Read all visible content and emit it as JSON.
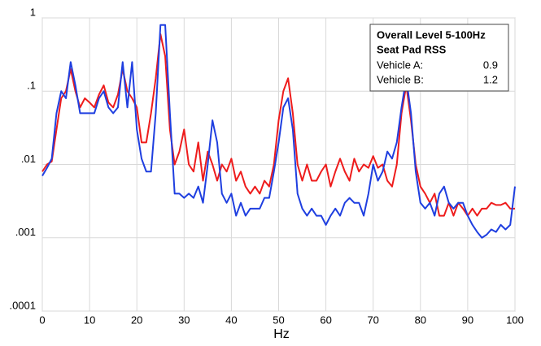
{
  "chart_data": {
    "type": "line",
    "legend_title": [
      "Overall Level 5-100Hz",
      "Seat Pad RSS"
    ],
    "x_label": "Hz",
    "log_y": true,
    "grid": true,
    "legend_position": "upper-right",
    "xlim": [
      0,
      100
    ],
    "xticks": [
      0,
      10,
      20,
      30,
      40,
      50,
      60,
      70,
      80,
      90,
      100
    ],
    "ylim": [
      0.0001,
      1
    ],
    "yticks": [
      {
        "value": 0.0001,
        "label": ".0001"
      },
      {
        "value": 0.001,
        "label": ".001"
      },
      {
        "value": 0.01,
        "label": ".01"
      },
      {
        "value": 0.1,
        "label": ".1"
      },
      1
    ],
    "x": [
      0,
      1,
      2,
      3,
      4,
      5,
      6,
      7,
      8,
      9,
      10,
      11,
      12,
      13,
      14,
      15,
      16,
      17,
      18,
      19,
      20,
      21,
      22,
      23,
      24,
      25,
      26,
      27,
      28,
      29,
      30,
      31,
      32,
      33,
      34,
      35,
      36,
      37,
      38,
      39,
      40,
      41,
      42,
      43,
      44,
      45,
      46,
      47,
      48,
      49,
      50,
      51,
      52,
      53,
      54,
      55,
      56,
      57,
      58,
      59,
      60,
      61,
      62,
      63,
      64,
      65,
      66,
      67,
      68,
      69,
      70,
      71,
      72,
      73,
      74,
      75,
      76,
      77,
      78,
      79,
      80,
      81,
      82,
      83,
      84,
      85,
      86,
      87,
      88,
      89,
      90,
      91,
      92,
      93,
      94,
      95,
      96,
      97,
      98,
      99,
      100
    ],
    "series": [
      {
        "name": "Vehicle A:",
        "color": "#ee1c1c",
        "overall": 0.9,
        "values": [
          0.008,
          0.01,
          0.011,
          0.03,
          0.08,
          0.1,
          0.2,
          0.1,
          0.06,
          0.08,
          0.07,
          0.06,
          0.09,
          0.12,
          0.07,
          0.06,
          0.09,
          0.2,
          0.1,
          0.08,
          0.06,
          0.02,
          0.02,
          0.05,
          0.15,
          0.6,
          0.3,
          0.03,
          0.01,
          0.015,
          0.03,
          0.01,
          0.008,
          0.02,
          0.006,
          0.015,
          0.01,
          0.006,
          0.01,
          0.008,
          0.012,
          0.006,
          0.008,
          0.005,
          0.004,
          0.005,
          0.004,
          0.006,
          0.005,
          0.01,
          0.04,
          0.1,
          0.15,
          0.05,
          0.01,
          0.006,
          0.01,
          0.006,
          0.006,
          0.008,
          0.01,
          0.005,
          0.008,
          0.012,
          0.008,
          0.006,
          0.012,
          0.008,
          0.01,
          0.009,
          0.013,
          0.009,
          0.01,
          0.006,
          0.005,
          0.01,
          0.05,
          0.12,
          0.04,
          0.01,
          0.005,
          0.004,
          0.003,
          0.004,
          0.002,
          0.002,
          0.003,
          0.002,
          0.003,
          0.0025,
          0.002,
          0.0025,
          0.002,
          0.0025,
          0.0025,
          0.003,
          0.0028,
          0.0028,
          0.003,
          0.0025,
          0.0025
        ]
      },
      {
        "name": "Vehicle B:",
        "color": "#1f3fe0",
        "overall": 1.2,
        "values": [
          0.007,
          0.009,
          0.012,
          0.05,
          0.1,
          0.08,
          0.25,
          0.12,
          0.05,
          0.05,
          0.05,
          0.05,
          0.08,
          0.1,
          0.06,
          0.05,
          0.06,
          0.25,
          0.06,
          0.25,
          0.03,
          0.012,
          0.008,
          0.008,
          0.05,
          0.8,
          0.8,
          0.05,
          0.004,
          0.004,
          0.0035,
          0.004,
          0.0035,
          0.005,
          0.003,
          0.01,
          0.04,
          0.02,
          0.004,
          0.003,
          0.004,
          0.002,
          0.003,
          0.002,
          0.0025,
          0.0025,
          0.0025,
          0.0035,
          0.0035,
          0.008,
          0.02,
          0.06,
          0.08,
          0.03,
          0.004,
          0.0025,
          0.002,
          0.0025,
          0.002,
          0.002,
          0.0015,
          0.002,
          0.0025,
          0.002,
          0.003,
          0.0035,
          0.003,
          0.003,
          0.002,
          0.004,
          0.01,
          0.006,
          0.008,
          0.015,
          0.012,
          0.02,
          0.06,
          0.15,
          0.05,
          0.008,
          0.003,
          0.0025,
          0.003,
          0.002,
          0.004,
          0.005,
          0.003,
          0.0025,
          0.003,
          0.003,
          0.002,
          0.0015,
          0.0012,
          0.001,
          0.0011,
          0.0013,
          0.0012,
          0.0015,
          0.0013,
          0.0015,
          0.005
        ]
      }
    ]
  }
}
